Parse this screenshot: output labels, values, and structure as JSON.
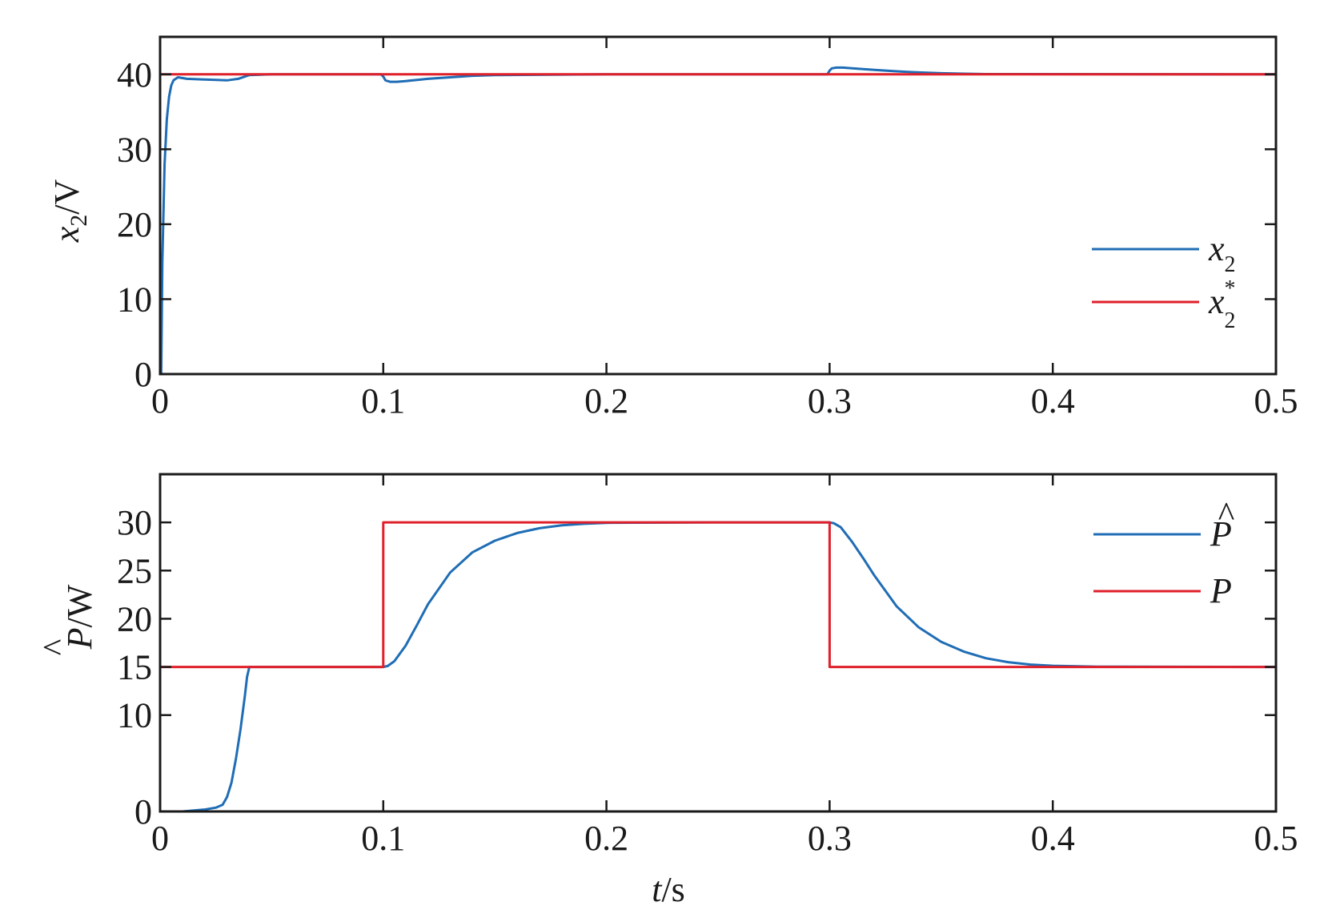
{
  "colors": {
    "blue": "#1f6db5",
    "red": "#e0202a",
    "axis": "#1a1a1a"
  },
  "chart_data": [
    {
      "type": "line",
      "ylabel": {
        "var": "x",
        "sub": "2",
        "unit": "/V"
      },
      "xlim": [
        0,
        0.5
      ],
      "ylim": [
        0,
        45
      ],
      "xticks": [
        0,
        0.1,
        0.2,
        0.3,
        0.4,
        0.5
      ],
      "xtick_labels": [
        "0",
        "0.1",
        "0.2",
        "0.3",
        "0.4",
        "0.5"
      ],
      "yticks": [
        0,
        10,
        20,
        30,
        40
      ],
      "ytick_labels": [
        "0",
        "10",
        "20",
        "30",
        "40"
      ],
      "legend_position": "right",
      "series": [
        {
          "name": "x2",
          "legend_var": "x",
          "legend_sub": "2",
          "legend_sup": "",
          "color": "#1f6db5",
          "x": [
            0,
            0.0005,
            0.001,
            0.002,
            0.003,
            0.004,
            0.005,
            0.006,
            0.008,
            0.012,
            0.02,
            0.03,
            0.035,
            0.04,
            0.05,
            0.099,
            0.1,
            0.101,
            0.103,
            0.106,
            0.11,
            0.12,
            0.13,
            0.14,
            0.15,
            0.2,
            0.299,
            0.3,
            0.301,
            0.303,
            0.306,
            0.31,
            0.32,
            0.33,
            0.34,
            0.35,
            0.36,
            0.37,
            0.5
          ],
          "y": [
            3,
            0,
            15,
            28,
            34,
            37,
            38.5,
            39.2,
            39.6,
            39.4,
            39.3,
            39.2,
            39.4,
            39.9,
            40,
            40,
            39.7,
            39.2,
            39.0,
            39.0,
            39.1,
            39.4,
            39.6,
            39.8,
            39.9,
            40,
            40,
            40.5,
            40.8,
            40.9,
            40.9,
            40.8,
            40.6,
            40.4,
            40.25,
            40.15,
            40.08,
            40.03,
            40
          ]
        },
        {
          "name": "x2*",
          "legend_var": "x",
          "legend_sub": "2",
          "legend_sup": "*",
          "color": "#e0202a",
          "x": [
            0,
            0.5
          ],
          "y": [
            40,
            40
          ]
        }
      ]
    },
    {
      "type": "line",
      "ylabel": {
        "var": "P",
        "hat": true,
        "unit": "/W"
      },
      "xlabel": {
        "var": "t",
        "unit": "/s"
      },
      "xlim": [
        0,
        0.5
      ],
      "ylim": [
        0,
        35
      ],
      "xticks": [
        0,
        0.1,
        0.2,
        0.3,
        0.4,
        0.5
      ],
      "xtick_labels": [
        "0",
        "0.1",
        "0.2",
        "0.3",
        "0.4",
        "0.5"
      ],
      "yticks": [
        0,
        10,
        15,
        20,
        25,
        30
      ],
      "ytick_labels": [
        "0",
        "10",
        "15",
        "20",
        "25",
        "30"
      ],
      "legend_position": "top-right",
      "series": [
        {
          "name": "P-hat",
          "legend_var": "P",
          "legend_hat": true,
          "color": "#1f6db5",
          "x": [
            0,
            0.01,
            0.02,
            0.025,
            0.028,
            0.03,
            0.032,
            0.034,
            0.036,
            0.038,
            0.039,
            0.04,
            0.1,
            0.102,
            0.105,
            0.11,
            0.115,
            0.12,
            0.13,
            0.14,
            0.15,
            0.16,
            0.17,
            0.18,
            0.19,
            0.2,
            0.25,
            0.3,
            0.302,
            0.305,
            0.31,
            0.315,
            0.32,
            0.33,
            0.34,
            0.35,
            0.36,
            0.37,
            0.38,
            0.39,
            0.4,
            0.42,
            0.5
          ],
          "y": [
            0,
            0,
            0.2,
            0.4,
            0.7,
            1.5,
            3,
            5.5,
            8.5,
            12,
            14,
            15,
            15,
            15.1,
            15.6,
            17.2,
            19.3,
            21.5,
            24.8,
            26.9,
            28.1,
            28.9,
            29.4,
            29.7,
            29.85,
            29.95,
            30,
            30,
            29.9,
            29.5,
            28,
            26.3,
            24.5,
            21.3,
            19.1,
            17.6,
            16.6,
            15.9,
            15.5,
            15.25,
            15.12,
            15.03,
            15
          ]
        },
        {
          "name": "P",
          "legend_var": "P",
          "legend_hat": false,
          "color": "#e0202a",
          "x": [
            0,
            0.1,
            0.1,
            0.3,
            0.3,
            0.5
          ],
          "y": [
            15,
            15,
            30,
            30,
            15,
            15
          ]
        }
      ]
    }
  ]
}
